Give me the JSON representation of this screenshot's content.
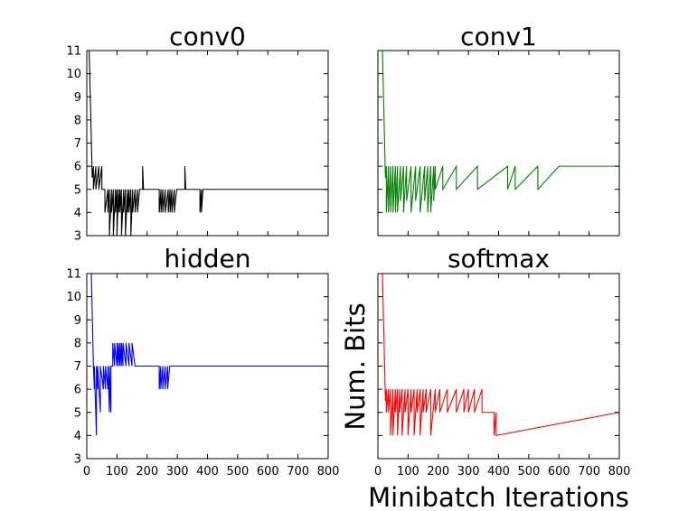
{
  "chart_data": {
    "type": "line",
    "shared_xlabel": "Minibatch Iterations",
    "shared_ylabel": "Num. Bits",
    "xlim": [
      0,
      800
    ],
    "x_ticks": [
      0,
      100,
      200,
      300,
      400,
      500,
      600,
      700,
      800
    ],
    "panels": [
      {
        "title": "conv0",
        "color": "#000000",
        "ylim": [
          3,
          11
        ],
        "y_ticks": [
          3,
          4,
          5,
          6,
          7,
          8,
          9,
          10,
          11
        ],
        "x": [
          0,
          8,
          18,
          22,
          22,
          30,
          30,
          40,
          40,
          50,
          50,
          60,
          60,
          70,
          70,
          75,
          75,
          82,
          82,
          88,
          88,
          95,
          95,
          100,
          100,
          105,
          105,
          110,
          110,
          115,
          115,
          122,
          122,
          128,
          128,
          135,
          135,
          140,
          140,
          146,
          146,
          152,
          152,
          160,
          160,
          168,
          168,
          175,
          175,
          185,
          185,
          188,
          188,
          200,
          200,
          240,
          240,
          246,
          246,
          252,
          252,
          260,
          260,
          270,
          270,
          276,
          276,
          282,
          282,
          290,
          290,
          298,
          298,
          325,
          325,
          328,
          328,
          375,
          375,
          380,
          380,
          385,
          385,
          800
        ],
        "values": [
          11,
          11,
          5.5,
          6,
          5,
          6,
          5,
          6,
          5,
          6,
          5,
          5,
          4,
          5,
          4,
          5,
          3,
          5,
          4,
          5,
          3,
          5,
          4,
          5,
          3,
          5,
          4,
          5,
          4,
          5,
          3,
          5,
          4,
          5,
          3,
          5,
          4,
          5,
          4,
          5,
          3,
          5,
          4,
          5,
          4,
          5,
          4,
          5,
          5,
          5,
          6,
          5,
          5,
          5,
          5,
          5,
          4,
          5,
          4,
          5,
          4,
          5,
          4,
          5,
          4,
          5,
          4,
          5,
          4,
          5,
          4,
          5,
          5,
          5,
          6,
          5,
          5,
          5,
          4,
          5,
          4,
          5,
          5,
          5
        ]
      },
      {
        "title": "conv1",
        "color": "#008000",
        "ylim": [
          3,
          11
        ],
        "y_ticks": [
          3,
          4,
          5,
          6,
          7,
          8,
          9,
          10,
          11
        ],
        "x": [
          0,
          15,
          25,
          28,
          28,
          35,
          35,
          42,
          42,
          50,
          50,
          58,
          58,
          65,
          65,
          75,
          75,
          85,
          85,
          95,
          95,
          110,
          110,
          125,
          125,
          140,
          140,
          155,
          155,
          165,
          165,
          175,
          175,
          185,
          185,
          190,
          190,
          215,
          215,
          260,
          260,
          330,
          330,
          430,
          430,
          455,
          455,
          530,
          530,
          600,
          600,
          800
        ],
        "values": [
          11,
          11,
          5.5,
          6,
          4,
          6,
          4,
          6,
          4,
          6,
          4,
          6,
          4,
          6,
          4,
          6,
          4.5,
          6,
          4,
          6,
          4.5,
          6,
          4,
          6,
          4.5,
          6,
          4,
          6,
          4.5,
          6,
          4,
          6,
          4,
          6,
          4.5,
          6,
          5,
          6,
          5,
          6,
          5,
          6,
          5,
          6,
          5,
          6,
          5,
          6,
          5,
          6,
          6,
          6
        ]
      },
      {
        "title": "hidden",
        "color": "#0000ff",
        "ylim": [
          3,
          11
        ],
        "y_ticks": [
          3,
          4,
          5,
          6,
          7,
          8,
          9,
          10,
          11
        ],
        "x": [
          0,
          15,
          22,
          25,
          25,
          32,
          32,
          36,
          36,
          45,
          45,
          55,
          55,
          62,
          62,
          70,
          70,
          75,
          75,
          80,
          80,
          86,
          86,
          92,
          92,
          100,
          100,
          105,
          105,
          110,
          110,
          115,
          115,
          120,
          120,
          130,
          130,
          140,
          140,
          150,
          150,
          160,
          160,
          165,
          165,
          240,
          240,
          245,
          245,
          252,
          252,
          260,
          260,
          268,
          268,
          275,
          275,
          800
        ],
        "values": [
          11,
          11,
          7,
          6,
          7,
          4,
          7,
          6,
          7,
          5,
          7,
          6,
          7,
          6,
          7,
          6,
          7,
          5,
          7,
          5,
          7,
          7,
          8,
          7,
          8,
          7,
          8,
          7,
          8,
          7,
          8,
          7,
          8,
          7,
          8,
          7,
          8,
          7,
          8,
          7,
          8,
          7,
          7,
          7,
          7,
          7,
          6,
          7,
          6,
          7,
          6,
          7,
          6,
          7,
          6,
          7,
          7,
          7
        ]
      },
      {
        "title": "softmax",
        "color": "#ff0000",
        "ylim": [
          3,
          11
        ],
        "y_ticks": [
          3,
          4,
          5,
          6,
          7,
          8,
          9,
          10,
          11
        ],
        "x": [
          0,
          15,
          25,
          28,
          28,
          35,
          35,
          42,
          42,
          50,
          50,
          58,
          58,
          65,
          65,
          72,
          72,
          80,
          80,
          90,
          90,
          100,
          100,
          110,
          110,
          120,
          120,
          130,
          130,
          140,
          140,
          150,
          150,
          160,
          160,
          175,
          175,
          190,
          190,
          205,
          205,
          230,
          230,
          260,
          260,
          285,
          285,
          300,
          300,
          320,
          320,
          345,
          345,
          385,
          385,
          392,
          392,
          800
        ],
        "values": [
          11,
          11,
          5.5,
          6,
          5,
          6,
          5,
          6,
          4,
          6,
          4,
          6,
          5,
          6,
          4,
          6,
          5,
          6,
          4,
          6,
          5,
          6,
          4,
          6,
          5,
          6,
          4,
          6,
          5,
          6,
          4,
          6,
          5,
          6,
          5,
          6,
          4,
          6,
          5,
          6,
          5,
          6,
          5,
          6,
          5,
          6,
          5,
          6,
          5,
          6,
          5,
          6,
          5,
          5,
          4,
          5,
          4,
          5
        ]
      }
    ]
  }
}
